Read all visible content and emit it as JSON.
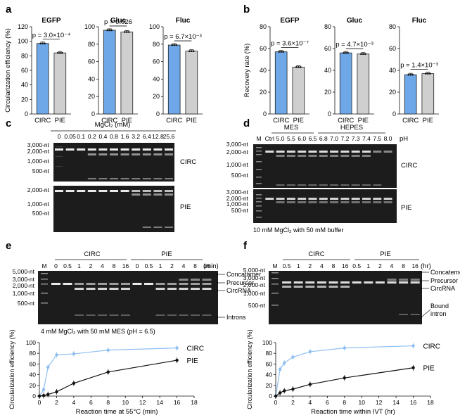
{
  "colors": {
    "circ": "#6fa8e8",
    "pie": "#cfcfcf",
    "bar_edge": "#222",
    "curve_circ": "#8fbff2",
    "curve_pie": "#111",
    "gel_bg": "#1c1c1c"
  },
  "panel_letters": {
    "a": "a",
    "b": "b",
    "c": "c",
    "d": "d",
    "e": "e",
    "f": "f"
  },
  "chart_data": [
    {
      "panel": "a",
      "type": "bar",
      "title": "EGFP",
      "categories": [
        "CIRC",
        "PIE"
      ],
      "values": [
        97,
        84
      ],
      "ylim": [
        0,
        120
      ],
      "yticks": [
        "0",
        "20",
        "40",
        "60",
        "80",
        "100",
        "120"
      ],
      "ylabel": "Circularization efficiency (%)",
      "annotation": "p = 3.0×10⁻⁴"
    },
    {
      "panel": "a",
      "type": "bar",
      "title": "Gluc",
      "categories": [
        "CIRC",
        "PIE"
      ],
      "values": [
        96,
        94
      ],
      "ylim": [
        0,
        100
      ],
      "yticks": [
        "0",
        "20",
        "40",
        "60",
        "80",
        "100"
      ],
      "ylabel": "",
      "annotation": "p = 0.026"
    },
    {
      "panel": "a",
      "type": "bar",
      "title": "Fluc",
      "categories": [
        "CIRC",
        "PIE"
      ],
      "values": [
        79,
        72
      ],
      "ylim": [
        0,
        100
      ],
      "yticks": [
        "0",
        "20",
        "40",
        "60",
        "80",
        "100"
      ],
      "ylabel": "",
      "annotation": "p = 6.7×10⁻³"
    },
    {
      "panel": "b",
      "type": "bar",
      "title": "EGFP",
      "categories": [
        "CIRC",
        "PIE"
      ],
      "values": [
        57,
        43
      ],
      "ylim": [
        0,
        80
      ],
      "yticks": [
        "0",
        "20",
        "40",
        "60",
        "80"
      ],
      "ylabel": "Recovery rate (%)",
      "annotation": "p = 3.6×10⁻⁷"
    },
    {
      "panel": "b",
      "type": "bar",
      "title": "Gluc",
      "categories": [
        "CIRC",
        "PIE"
      ],
      "values": [
        56,
        55
      ],
      "ylim": [
        0,
        80
      ],
      "yticks": [
        "0",
        "20",
        "40",
        "60",
        "80"
      ],
      "ylabel": "",
      "annotation": "p = 4.7×10⁻³"
    },
    {
      "panel": "b",
      "type": "bar",
      "title": "Fluc",
      "categories": [
        "CIRC",
        "PIE"
      ],
      "values": [
        36,
        37
      ],
      "ylim": [
        0,
        80
      ],
      "yticks": [
        "0",
        "20",
        "40",
        "60",
        "80"
      ],
      "ylabel": "",
      "annotation": "p = 1.4×10⁻³"
    },
    {
      "panel": "e",
      "type": "line",
      "x": [
        0,
        0.5,
        1,
        2,
        4,
        8,
        16
      ],
      "series": [
        {
          "name": "CIRC",
          "values": [
            0,
            12,
            54,
            77,
            79,
            86,
            90
          ]
        },
        {
          "name": "PIE",
          "values": [
            0,
            1,
            3,
            8,
            24,
            45,
            67
          ]
        }
      ],
      "xlim": [
        0,
        18
      ],
      "ylim": [
        0,
        100
      ],
      "xticks": [
        "0",
        "2",
        "4",
        "6",
        "8",
        "10",
        "12",
        "14",
        "16",
        "18"
      ],
      "yticks": [
        "0",
        "20",
        "40",
        "60",
        "80",
        "100"
      ],
      "xlabel": "Reaction time at 55°C (min)",
      "ylabel": "Circularization efficiency (%)"
    },
    {
      "panel": "f",
      "type": "line",
      "x": [
        0,
        0.5,
        1,
        2,
        4,
        8,
        16
      ],
      "series": [
        {
          "name": "CIRC",
          "values": [
            0,
            50,
            62,
            73,
            83,
            90,
            94
          ]
        },
        {
          "name": "PIE",
          "values": [
            0,
            6,
            10,
            13,
            22,
            34,
            53
          ]
        }
      ],
      "xlim": [
        0,
        18
      ],
      "ylim": [
        0,
        100
      ],
      "xticks": [
        "0",
        "2",
        "4",
        "6",
        "8",
        "10",
        "12",
        "14",
        "16",
        "18"
      ],
      "yticks": [
        "0",
        "20",
        "40",
        "60",
        "80",
        "100"
      ],
      "xlabel": "Reaction time within IVT (hr)",
      "ylabel": "Circularization efficiency (%)"
    }
  ],
  "gel_c": {
    "header": "MgCl₂ (mM)",
    "lanes": [
      "0",
      "0.05",
      "0.1",
      "0.2",
      "0.4",
      "0.8",
      "1.6",
      "3.2",
      "6.4",
      "12.8",
      "25.6"
    ],
    "top_markers": [
      "3,000-nt",
      "2,000-nt",
      "1,000-nt",
      "500-nt"
    ],
    "top_label": "CIRC",
    "bottom_markers": [
      "2,000-nt",
      "1,000-nt",
      "500-nt"
    ],
    "bottom_label": "PIE"
  },
  "gel_d": {
    "group_mes": "MES",
    "group_hepes": "HEPES",
    "lanes": [
      "M",
      "Ctrl",
      "5.0",
      "5.5",
      "6.0",
      "6.5",
      "6.8",
      "7.0",
      "7.2",
      "7.3",
      "7.4",
      "7.5",
      "8.0"
    ],
    "unit": "pH",
    "top_markers": [
      "3,000-nt",
      "2,000-nt",
      "1,000-nt",
      "500-nt"
    ],
    "top_label": "CIRC",
    "bottom_markers": [
      "3,000-nt",
      "2,000-nt",
      "1,000-nt",
      "500-nt"
    ],
    "bottom_label": "PIE",
    "footnote": "10 mM MgCl₂ with 50 mM buffer"
  },
  "gel_e": {
    "group_circ": "CIRC",
    "group_pie": "PIE",
    "unit": "(min)",
    "lanes": [
      "M",
      "0",
      "0.5",
      "1",
      "2",
      "4",
      "8",
      "16",
      "0",
      "0.5",
      "1",
      "2",
      "4",
      "8",
      "16"
    ],
    "markers": [
      "5,000-nt",
      "3,000-nt",
      "2,000-nt",
      "1,000-nt",
      "500-nt"
    ],
    "right_labels": [
      "Concatamer",
      "Precursor",
      "CircRNA",
      "Introns"
    ],
    "footnote": "4 mM MgCl₂ with 50 mM MES (pH = 6.5)"
  },
  "gel_f": {
    "group_circ": "CIRC",
    "group_pie": "PIE",
    "unit": "(hr)",
    "lanes": [
      "M",
      "0.5",
      "1",
      "2",
      "4",
      "8",
      "16",
      "0.5",
      "1",
      "2",
      "4",
      "8",
      "16"
    ],
    "markers": [
      "5,000-nt",
      "3,000-nt",
      "2,000-nt",
      "1,000-nt",
      "500-nt"
    ],
    "right_labels": [
      "Concatemer",
      "Precursor",
      "CircRNA",
      "Bound",
      "intron"
    ]
  }
}
